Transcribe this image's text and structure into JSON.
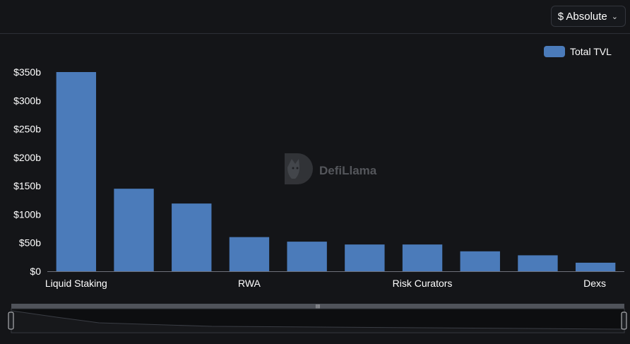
{
  "controls": {
    "mode_label": "$ Absolute",
    "mode_icon": "chevron-down-icon"
  },
  "watermark": {
    "text": "DefiLlama",
    "icon": "defillama-logo-icon"
  },
  "colors": {
    "background": "#141518",
    "bar": "#4b7bba",
    "axis_text": "#ffffff",
    "slider_track": "#50535a",
    "slider_fill": "#0e0f11"
  },
  "chart_data": {
    "type": "bar",
    "title": "",
    "xlabel": "",
    "ylabel": "",
    "legend": {
      "position": "top-right",
      "entries": [
        "Total TVL"
      ]
    },
    "categories": [
      "Liquid Staking",
      "",
      "",
      "RWA",
      "",
      "",
      "Risk Curators",
      "",
      "",
      "Dexs"
    ],
    "x_tick_labels": [
      "Liquid Staking",
      "RWA",
      "Risk Curators",
      "Dexs"
    ],
    "series": [
      {
        "name": "Total TVL",
        "values": [
          350,
          145,
          119,
          60,
          52,
          47,
          47,
          35,
          28,
          15
        ]
      }
    ],
    "ylim": [
      0,
      350
    ],
    "y_ticks": [
      0,
      50,
      100,
      150,
      200,
      250,
      300,
      350
    ],
    "y_tick_labels": [
      "$0",
      "$50b",
      "$100b",
      "$150b",
      "$200b",
      "$250b",
      "$300b",
      "$350b"
    ],
    "grid": false
  }
}
